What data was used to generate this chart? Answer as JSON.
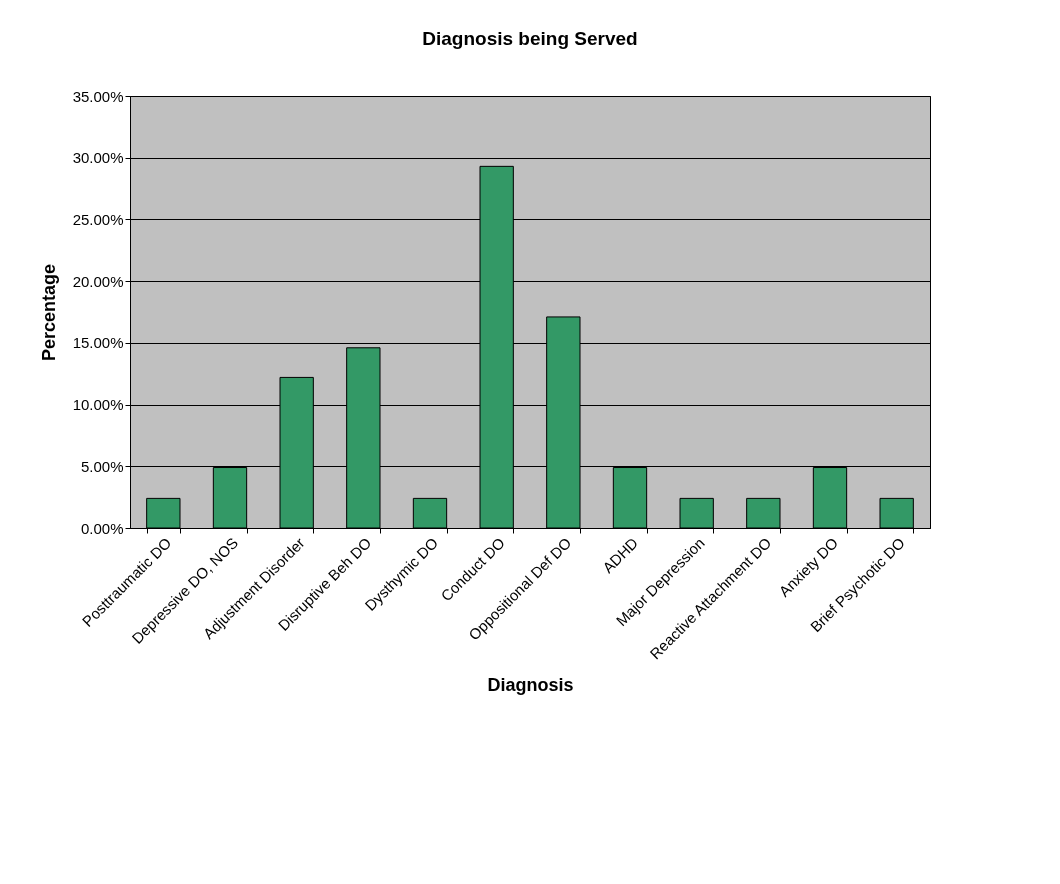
{
  "chart_data": {
    "type": "bar",
    "title": "Diagnosis being Served",
    "xlabel": "Diagnosis",
    "ylabel": "Percentage",
    "categories": [
      "Posttraumatic DO",
      "Depressive DO, NOS",
      "Adjustment Disorder",
      "Disruptive Beh DO",
      "Dysthymic DO",
      "Conduct DO",
      "Oppositional Def DO",
      "ADHD",
      "Major Depression",
      "Reactive Attachment DO",
      "Anxiety DO",
      "Brief Psychotic DO"
    ],
    "values": [
      2.4,
      4.9,
      12.2,
      14.6,
      2.4,
      29.3,
      17.1,
      4.9,
      2.4,
      2.4,
      4.9,
      2.4
    ],
    "color": "#339966",
    "ylim": [
      0,
      35
    ],
    "yticks": [
      {
        "value": 0,
        "label": "0.00%"
      },
      {
        "value": 5,
        "label": "5.00%"
      },
      {
        "value": 10,
        "label": "10.00%"
      },
      {
        "value": 15,
        "label": "15.00%"
      },
      {
        "value": 20,
        "label": "20.00%"
      },
      {
        "value": 25,
        "label": "25.00%"
      },
      {
        "value": 30,
        "label": "30.00%"
      },
      {
        "value": 35,
        "label": "35.00%"
      }
    ],
    "grid": "y"
  }
}
